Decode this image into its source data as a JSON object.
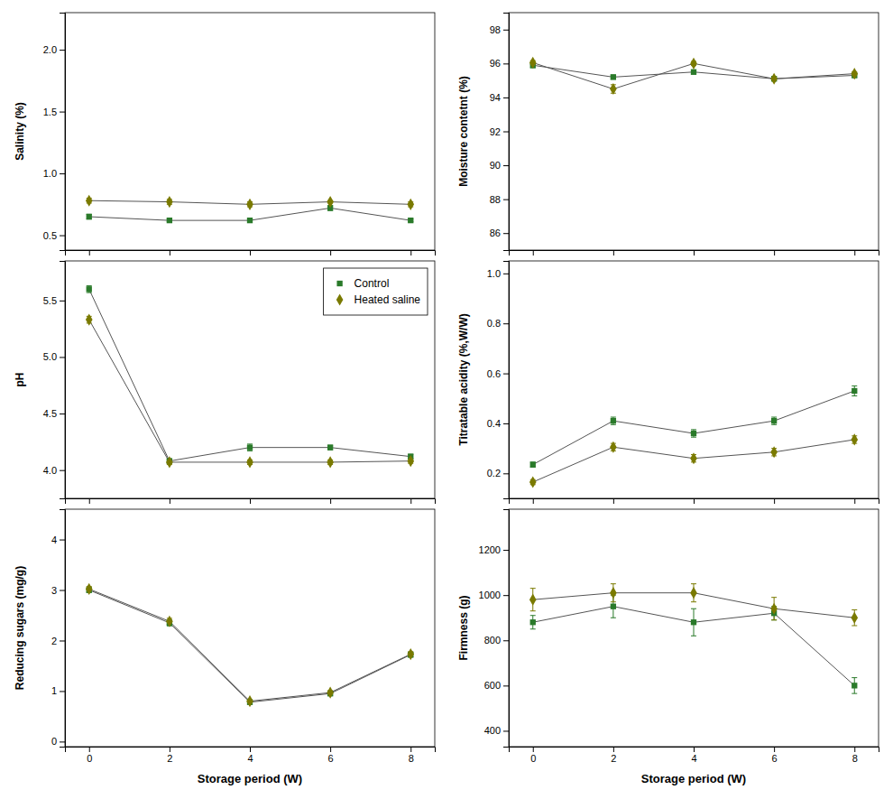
{
  "chart_data": [
    {
      "type": "line",
      "ylabel": "Salinity (%)",
      "x": [
        0,
        2,
        4,
        6,
        8
      ],
      "xlim": [
        -0.6,
        8.6
      ],
      "xticks": [
        0,
        2,
        4,
        6,
        8
      ],
      "ylim": [
        0.38,
        2.3
      ],
      "yticks": [
        0.5,
        {
          "value": 1,
          "label": "1.0"
        },
        1.5,
        {
          "value": 2,
          "label": "2.0"
        }
      ],
      "grid": false,
      "tick_labels": "y",
      "series": [
        {
          "color": "#2a7a2a",
          "marker": "square",
          "line_style": "solid",
          "values": [
            0.65,
            0.62,
            0.62,
            0.72,
            0.62
          ],
          "errors": [
            0.02,
            0.01,
            0.01,
            0.02,
            0.01
          ]
        },
        {
          "color": "#7a7a00",
          "marker": "diamond",
          "line_style": "solid",
          "values": [
            0.78,
            0.77,
            0.75,
            0.77,
            0.75
          ],
          "errors": [
            0.02,
            0.02,
            0.02,
            0.01,
            0.02
          ]
        }
      ]
    },
    {
      "type": "line",
      "ylabel": "Moisture contetnt (%)",
      "x": [
        0,
        2,
        4,
        6,
        8
      ],
      "xlim": [
        -0.6,
        8.6
      ],
      "xticks": [
        0,
        2,
        4,
        6,
        8
      ],
      "ylim": [
        85.0,
        99.0
      ],
      "yticks": [
        86,
        88,
        90,
        92,
        94,
        96,
        98
      ],
      "grid": false,
      "tick_labels": "y",
      "series": [
        {
          "color": "#2a7a2a",
          "marker": "square",
          "line_style": "solid",
          "values": [
            95.9,
            95.2,
            95.5,
            95.1,
            95.3
          ],
          "errors": [
            0.15,
            0.12,
            0.12,
            0.12,
            0.12
          ]
        },
        {
          "color": "#7a7a00",
          "marker": "diamond",
          "line_style": "solid",
          "values": [
            96.05,
            94.5,
            96.0,
            95.1,
            95.4
          ],
          "errors": [
            0.12,
            0.25,
            0.12,
            0.12,
            0.12
          ]
        }
      ]
    },
    {
      "type": "line",
      "ylabel": "pH",
      "x": [
        0,
        2,
        4,
        6,
        8
      ],
      "xlim": [
        -0.6,
        8.6
      ],
      "xticks": [
        0,
        2,
        4,
        6,
        8
      ],
      "ylim": [
        3.75,
        5.85
      ],
      "yticks": [
        {
          "value": 4,
          "label": "4.0"
        },
        4.5,
        {
          "value": 5,
          "label": "5.0"
        },
        5.5
      ],
      "grid": false,
      "tick_labels": "y",
      "legend": "upper right",
      "series": [
        {
          "name": "Control",
          "color": "#2a7a2a",
          "marker": "square",
          "line_style": "solid",
          "values": [
            5.6,
            4.08,
            4.2,
            4.2,
            4.12
          ],
          "errors": [
            0.03,
            0.02,
            0.03,
            0.02,
            0.02
          ]
        },
        {
          "name": "Heated saline",
          "color": "#7a7a00",
          "marker": "diamond",
          "line_style": "solid",
          "values": [
            5.33,
            4.07,
            4.07,
            4.07,
            4.08
          ],
          "errors": [
            0.03,
            0.02,
            0.02,
            0.02,
            0.02
          ]
        }
      ]
    },
    {
      "type": "line",
      "ylabel": "Titratable acidity (%,W/W)",
      "x": [
        0,
        2,
        4,
        6,
        8
      ],
      "xlim": [
        -0.6,
        8.6
      ],
      "xticks": [
        0,
        2,
        4,
        6,
        8
      ],
      "ylim": [
        0.1,
        1.05
      ],
      "yticks": [
        0.2,
        0.4,
        0.6,
        0.8,
        {
          "value": 1,
          "label": "1.0"
        }
      ],
      "grid": false,
      "tick_labels": "y",
      "series": [
        {
          "color": "#2a7a2a",
          "marker": "square",
          "line_style": "solid",
          "values": [
            0.235,
            0.41,
            0.36,
            0.41,
            0.53
          ],
          "errors": [
            0.01,
            0.015,
            0.015,
            0.015,
            0.02
          ]
        },
        {
          "color": "#7a7a00",
          "marker": "diamond",
          "line_style": "solid",
          "values": [
            0.165,
            0.305,
            0.26,
            0.285,
            0.335
          ],
          "errors": [
            0.01,
            0.015,
            0.015,
            0.015,
            0.015
          ]
        }
      ]
    },
    {
      "type": "line",
      "ylabel": "Reducing sugars (mg/g)",
      "xlabel": "Storage period (W)",
      "x": [
        0,
        2,
        4,
        6,
        8
      ],
      "xlim": [
        -0.6,
        8.6
      ],
      "xticks": [
        0,
        2,
        4,
        6,
        8
      ],
      "ylim": [
        -0.1,
        4.6
      ],
      "yticks": [
        0,
        1,
        2,
        3,
        4
      ],
      "grid": false,
      "series": [
        {
          "color": "#2a7a2a",
          "marker": "square",
          "line_style": "solid",
          "values": [
            3.0,
            2.35,
            0.78,
            0.95,
            1.72
          ],
          "errors": [
            0.05,
            0.06,
            0.03,
            0.04,
            0.05
          ]
        },
        {
          "color": "#7a7a00",
          "marker": "diamond",
          "line_style": "solid",
          "values": [
            3.02,
            2.38,
            0.8,
            0.97,
            1.73
          ],
          "errors": [
            0.05,
            0.06,
            0.03,
            0.04,
            0.05
          ]
        }
      ]
    },
    {
      "type": "line",
      "ylabel": "Firmness (g)",
      "xlabel": "Storage period (W)",
      "x": [
        0,
        2,
        4,
        6,
        8
      ],
      "xlim": [
        -0.6,
        8.6
      ],
      "xticks": [
        0,
        2,
        4,
        6,
        8
      ],
      "ylim": [
        330,
        1380
      ],
      "yticks": [
        400,
        600,
        800,
        1000,
        1200
      ],
      "grid": false,
      "series": [
        {
          "color": "#2a7a2a",
          "marker": "square",
          "line_style": "solid",
          "values": [
            880,
            950,
            880,
            920,
            600
          ],
          "errors": [
            30,
            50,
            60,
            30,
            35
          ]
        },
        {
          "color": "#7a7a00",
          "marker": "diamond",
          "line_style": "solid",
          "values": [
            980,
            1010,
            1010,
            940,
            900
          ],
          "errors": [
            50,
            40,
            40,
            50,
            35
          ]
        }
      ]
    }
  ]
}
